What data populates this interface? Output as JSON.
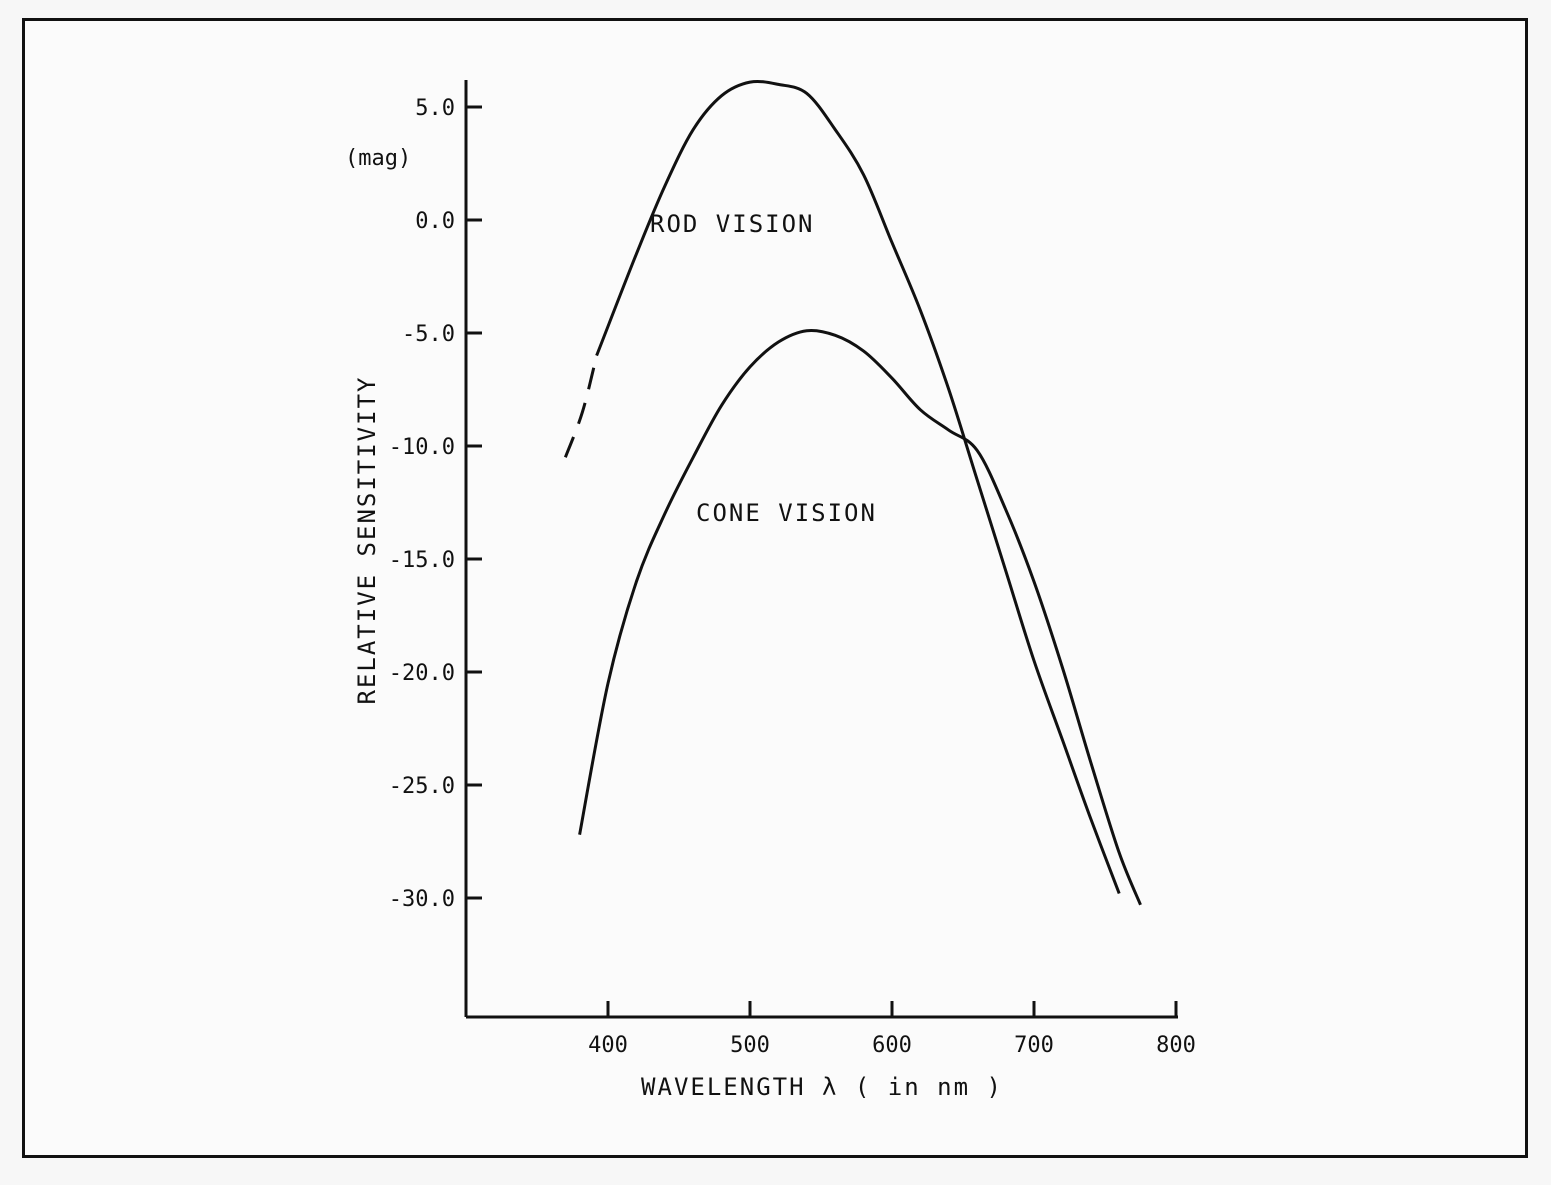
{
  "chart_data": {
    "type": "line",
    "title": "",
    "xlabel": "WAVELENGTH λ ( in nm )",
    "ylabel": "RELATIVE  SENSITIVITY",
    "ylabel_unit": "(mag)",
    "xlim": [
      300,
      800
    ],
    "ylim": [
      -34.0,
      7.0
    ],
    "x_ticks": [
      400,
      500,
      600,
      700,
      800
    ],
    "x_tick_labels": [
      "400",
      "500",
      "600",
      "700",
      "800"
    ],
    "y_ticks": [
      5.0,
      0.0,
      -5.0,
      -10.0,
      -15.0,
      -20.0,
      -25.0,
      -30.0
    ],
    "y_tick_labels": [
      "5.0",
      "0.0",
      "-5.0",
      "-10.0",
      "-15.0",
      "-20.0",
      "-25.0",
      "-30.0"
    ],
    "grid": false,
    "annotations": [
      {
        "text": "ROD VISION",
        "x": 533,
        "y": 0.0
      },
      {
        "text": "CONE VISION",
        "x": 563,
        "y": -12.8
      }
    ],
    "series": [
      {
        "name": "ROD VISION",
        "dashed_segment": [
          [
            370,
            -10.5
          ],
          [
            382,
            -8.5
          ],
          [
            392,
            -6.0
          ]
        ],
        "values": [
          [
            392,
            -6.0
          ],
          [
            420,
            -1.5
          ],
          [
            440,
            1.5
          ],
          [
            460,
            4.0
          ],
          [
            480,
            5.5
          ],
          [
            500,
            6.1
          ],
          [
            520,
            6.0
          ],
          [
            540,
            5.6
          ],
          [
            560,
            4.0
          ],
          [
            580,
            2.0
          ],
          [
            600,
            -1.0
          ],
          [
            620,
            -4.0
          ],
          [
            640,
            -7.5
          ],
          [
            660,
            -11.5
          ],
          [
            680,
            -15.5
          ],
          [
            700,
            -19.5
          ],
          [
            720,
            -23.0
          ],
          [
            740,
            -26.5
          ],
          [
            760,
            -29.8
          ]
        ]
      },
      {
        "name": "CONE VISION",
        "values": [
          [
            380,
            -27.2
          ],
          [
            400,
            -20.5
          ],
          [
            420,
            -16.0
          ],
          [
            440,
            -13.0
          ],
          [
            460,
            -10.5
          ],
          [
            480,
            -8.2
          ],
          [
            500,
            -6.5
          ],
          [
            520,
            -5.4
          ],
          [
            540,
            -4.9
          ],
          [
            560,
            -5.1
          ],
          [
            580,
            -5.8
          ],
          [
            600,
            -7.0
          ],
          [
            620,
            -8.4
          ],
          [
            640,
            -9.3
          ],
          [
            660,
            -10.2
          ],
          [
            680,
            -12.8
          ],
          [
            700,
            -16.0
          ],
          [
            720,
            -19.8
          ],
          [
            740,
            -24.0
          ],
          [
            760,
            -28.0
          ],
          [
            775,
            -30.3
          ]
        ]
      }
    ]
  }
}
